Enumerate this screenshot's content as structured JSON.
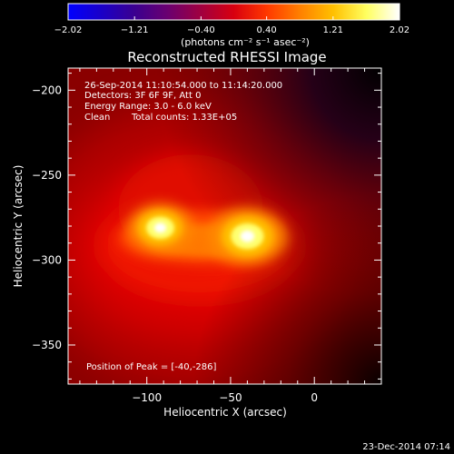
{
  "chart_data": {
    "type": "heatmap",
    "title": "Reconstructed RHESSI Image",
    "xlabel": "Heliocentric X (arcsec)",
    "ylabel": "Heliocentric Y (arcsec)",
    "xlim": [
      -147,
      40
    ],
    "ylim": [
      -373,
      -187
    ],
    "x_ticks": [
      -100,
      -50,
      0
    ],
    "x_tick_labels": [
      "−100",
      "−50",
      "0"
    ],
    "y_ticks": [
      -200,
      -250,
      -300,
      -350
    ],
    "y_tick_labels": [
      "−200",
      "−250",
      "−300",
      "−350"
    ],
    "colorbar": {
      "min": -2.02,
      "max": 2.02,
      "ticks": [
        -2.02,
        -1.21,
        -0.4,
        0.4,
        1.21,
        2.02
      ],
      "tick_labels": [
        "−2.02",
        "−1.21",
        "−0.40",
        "0.40",
        "1.21",
        "2.02"
      ],
      "label": "(photons cm⁻² s⁻¹ asec⁻²)",
      "colormap": [
        "#0000ff",
        "#1a00c8",
        "#3a0090",
        "#6a0070",
        "#a00040",
        "#d80010",
        "#ff3800",
        "#ff8000",
        "#ffc000",
        "#ffff60",
        "#ffffff"
      ]
    },
    "sources": [
      {
        "x": -92,
        "y": -281,
        "peak": 1.0,
        "sigma": 6
      },
      {
        "x": -40,
        "y": -286,
        "peak": 1.0,
        "sigma": 7
      }
    ],
    "grid": false,
    "legend": "none"
  },
  "annotations": {
    "time_range": "26-Sep-2014 11:10:54.000 to 11:14:20.000",
    "detectors": "Detectors: 3F 6F 9F, Att 0",
    "energy": "Energy Range: 3.0 - 6.0 keV",
    "method": "Clean",
    "counts": "Total counts: 1.33E+05",
    "peak": "Position of Peak = [-40,-286]",
    "footer_date": "23-Dec-2014 07:14"
  }
}
